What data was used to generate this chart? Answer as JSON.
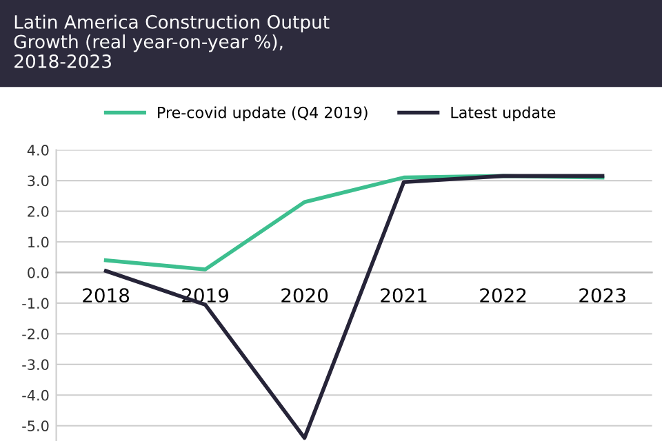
{
  "chart_data": {
    "type": "line",
    "title": "Latin America Construction Output\nGrowth (real year-on-year %),\n2018-2023",
    "categories": [
      "2018",
      "2019",
      "2020",
      "2021",
      "2022",
      "2023"
    ],
    "series": [
      {
        "name": "Pre-covid update (Q4 2019)",
        "color": "#3dbf8f",
        "values": [
          0.4,
          0.1,
          2.3,
          3.1,
          3.15,
          3.1
        ]
      },
      {
        "name": "Latest update",
        "color": "#262438",
        "values": [
          0.05,
          -1.05,
          -5.4,
          2.95,
          3.15,
          3.15
        ]
      }
    ],
    "ylim": [
      -5.5,
      4.0
    ],
    "yticks": [
      {
        "value": 4,
        "label": "4.0"
      },
      {
        "value": 3,
        "label": "3.0"
      },
      {
        "value": 2,
        "label": "2.0"
      },
      {
        "value": 1,
        "label": "1.0"
      },
      {
        "value": 0,
        "label": "0.0"
      },
      {
        "value": -1,
        "label": "-1.0"
      },
      {
        "value": -2,
        "label": "-2.0"
      },
      {
        "value": -3,
        "label": "-3.0"
      },
      {
        "value": -4,
        "label": "-4.0"
      },
      {
        "value": -5,
        "label": "-5.0"
      }
    ],
    "grid": "y",
    "legend": "top",
    "marker": "none",
    "line_style": "solid"
  }
}
